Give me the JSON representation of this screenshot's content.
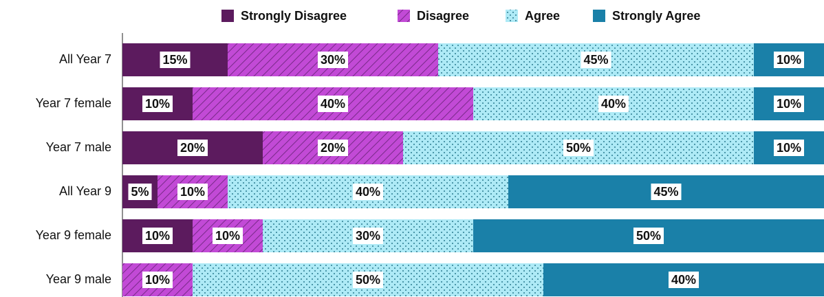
{
  "chart_data": {
    "type": "bar",
    "orientation": "horizontal",
    "stacked": true,
    "categories": [
      "All Year 7",
      "Year 7 female",
      "Year 7 male",
      "All Year 9",
      "Year 9 female",
      "Year 9 male"
    ],
    "series": [
      {
        "name": "Strongly Disagree",
        "color": "#5c1b5e",
        "pattern": "solid",
        "values": [
          15,
          10,
          20,
          5,
          10,
          0
        ],
        "value_labels": [
          "15%",
          "10%",
          "20%",
          "5%",
          "10%",
          null
        ]
      },
      {
        "name": "Disagree",
        "color": "#c24ad6",
        "pattern": "hatch",
        "values": [
          30,
          40,
          20,
          10,
          10,
          10
        ],
        "value_labels": [
          "30%",
          "40%",
          "20%",
          "10%",
          "10%",
          "10%"
        ]
      },
      {
        "name": "Agree",
        "color": "#aeeaf6",
        "pattern": "dots",
        "values": [
          45,
          40,
          50,
          40,
          30,
          50
        ],
        "value_labels": [
          "45%",
          "40%",
          "50%",
          "40%",
          "30%",
          "50%"
        ]
      },
      {
        "name": "Strongly Agree",
        "color": "#1a80a8",
        "pattern": "solid",
        "values": [
          10,
          10,
          10,
          45,
          50,
          40
        ],
        "value_labels": [
          "10%",
          "10%",
          "10%",
          "45%",
          "50%",
          "40%"
        ]
      }
    ],
    "legend": "top"
  }
}
